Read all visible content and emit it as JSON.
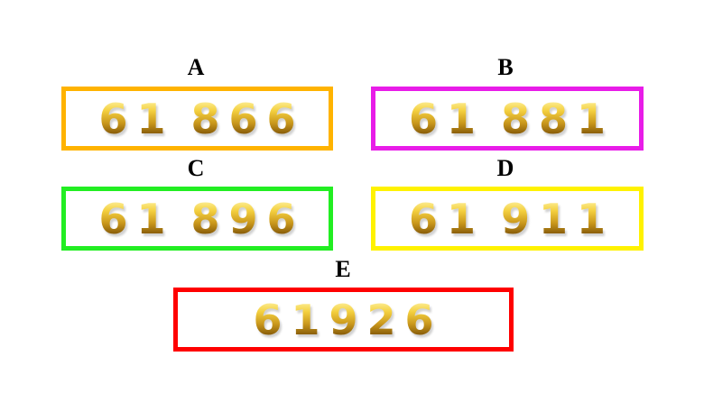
{
  "options": [
    {
      "label": "A",
      "number": "61 866",
      "color": "#FFB300"
    },
    {
      "label": "B",
      "number": "61 881",
      "color": "#E81CE8"
    },
    {
      "label": "C",
      "number": "61 896",
      "color": "#22EE22"
    },
    {
      "label": "D",
      "number": "61 911",
      "color": "#FFF200"
    },
    {
      "label": "E",
      "number": "61926",
      "color": "#FF0000"
    }
  ]
}
